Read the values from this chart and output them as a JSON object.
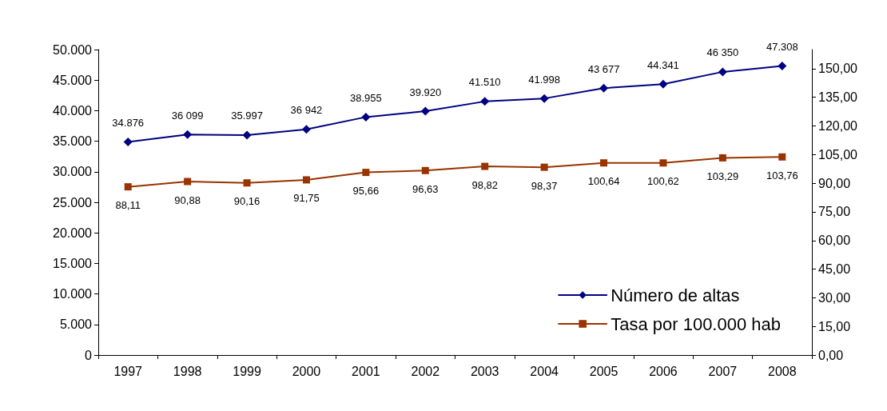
{
  "chart_data": {
    "type": "line",
    "categories": [
      "1997",
      "1998",
      "1999",
      "2000",
      "2001",
      "2002",
      "2003",
      "2004",
      "2005",
      "2006",
      "2007",
      "2008"
    ],
    "series": [
      {
        "name": "Número de altas",
        "color": "#000080",
        "marker": "diamond",
        "values": [
          34876,
          36099,
          35997,
          36942,
          38955,
          39920,
          41510,
          41998,
          43677,
          44341,
          46350,
          47308
        ],
        "value_labels": [
          "34.876",
          "36 099",
          "35.997",
          "36 942",
          "38.955",
          "39.920",
          "41.510",
          "41.998",
          "43 677",
          "44.341",
          "46 350",
          "47.308"
        ]
      },
      {
        "name": "Tasa por 100.000 hab",
        "color": "#993300",
        "marker": "square",
        "axis": "y2",
        "values": [
          88.11,
          90.88,
          90.16,
          91.75,
          95.66,
          96.63,
          98.82,
          98.37,
          100.64,
          100.62,
          103.29,
          103.76
        ],
        "value_labels": [
          "88,11",
          "90,88",
          "90,16",
          "91,75",
          "95,66",
          "96,63",
          "98,82",
          "98,37",
          "100,64",
          "100,62",
          "103,29",
          "103,76"
        ]
      }
    ],
    "ylim": [
      0,
      50000
    ],
    "yticks": [
      {
        "value": 0,
        "label": "0"
      },
      {
        "value": 5000,
        "label": "5.000"
      },
      {
        "value": 10000,
        "label": "10.000"
      },
      {
        "value": 15000,
        "label": "15.000"
      },
      {
        "value": 20000,
        "label": "20.000"
      },
      {
        "value": 25000,
        "label": "25.000"
      },
      {
        "value": 30000,
        "label": "30.000"
      },
      {
        "value": 35000,
        "label": "35.000"
      },
      {
        "value": 40000,
        "label": "40.000"
      },
      {
        "value": 45000,
        "label": "45.000"
      },
      {
        "value": 50000,
        "label": "50.000"
      }
    ],
    "y2lim": [
      0,
      160
    ],
    "y2ticks": [
      {
        "value": 0,
        "label": "0,00"
      },
      {
        "value": 15,
        "label": "15,00"
      },
      {
        "value": 30,
        "label": "30,00"
      },
      {
        "value": 45,
        "label": "45,00"
      },
      {
        "value": 60,
        "label": "60,00"
      },
      {
        "value": 75,
        "label": "75,00"
      },
      {
        "value": 90,
        "label": "90,00"
      },
      {
        "value": 105,
        "label": "105,00"
      },
      {
        "value": 120,
        "label": "120,00"
      },
      {
        "value": 135,
        "label": "135,00"
      },
      {
        "value": 150,
        "label": "150,00"
      }
    ],
    "grid": false,
    "legend": "bottom right"
  }
}
